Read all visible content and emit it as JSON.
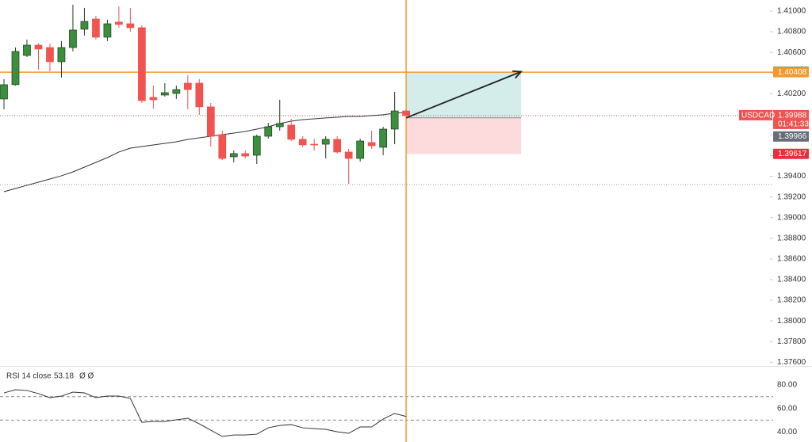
{
  "chart_data": {
    "type": "candlestick",
    "symbol": "USDCAD",
    "open": [
      1.40149,
      1.40287,
      1.4057,
      1.4067,
      1.40647,
      1.40509,
      1.40647,
      1.40824,
      1.40923,
      1.40747,
      1.40893,
      1.40877,
      1.40839,
      1.40164,
      1.40187,
      1.40202,
      1.40302,
      1.40302,
      1.40072,
      1.39803,
      1.39589,
      1.3962,
      1.39604,
      1.39788,
      1.3988,
      1.39896,
      1.39758,
      1.39711,
      1.39711,
      1.39758,
      1.39635,
      1.39573,
      1.39727,
      1.39681,
      1.39857,
      1.40033
    ],
    "high": [
      1.4034,
      1.40647,
      1.40724,
      1.40686,
      1.40686,
      1.40709,
      1.41061,
      1.41031,
      1.40954,
      1.40916,
      1.41046,
      1.41031,
      1.40862,
      1.40279,
      1.40302,
      1.40279,
      1.40379,
      1.4034,
      1.4011,
      1.39842,
      1.3965,
      1.3965,
      1.39803,
      1.39918,
      1.40141,
      1.39957,
      1.39788,
      1.39765,
      1.39788,
      1.39788,
      1.39666,
      1.39765,
      1.39842,
      1.3988,
      1.40217,
      1.40048
    ],
    "low": [
      1.40049,
      1.40279,
      1.40555,
      1.40432,
      1.40417,
      1.40356,
      1.40609,
      1.40762,
      1.40724,
      1.40709,
      1.40839,
      1.408,
      1.4011,
      1.40057,
      1.40172,
      1.40149,
      1.40049,
      1.39995,
      1.39688,
      1.39558,
      1.39535,
      1.39573,
      1.3952,
      1.39765,
      1.39842,
      1.39742,
      1.39681,
      1.3965,
      1.39573,
      1.3962,
      1.39328,
      1.39543,
      1.39666,
      1.39604,
      1.39711,
      1.3998
    ],
    "close": [
      1.40287,
      1.40609,
      1.4067,
      1.40632,
      1.40509,
      1.40647,
      1.40816,
      1.409,
      1.40747,
      1.40877,
      1.4087,
      1.40839,
      1.40133,
      1.40141,
      1.4021,
      1.4024,
      1.4024,
      1.40072,
      1.39788,
      1.39573,
      1.3962,
      1.39596,
      1.39788,
      1.3988,
      1.39911,
      1.39758,
      1.39704,
      1.39704,
      1.39758,
      1.39635,
      1.39573,
      1.39742,
      1.39696,
      1.39857,
      1.40033,
      1.39988
    ],
    "up_color": "#3b8f3e",
    "down_color": "#f05350",
    "moving_average": {
      "color": "#333333",
      "values": [
        1.39251,
        1.39282,
        1.39313,
        1.39343,
        1.39374,
        1.39405,
        1.39443,
        1.39489,
        1.39535,
        1.39581,
        1.39635,
        1.39673,
        1.39688,
        1.39704,
        1.39719,
        1.39734,
        1.39757,
        1.39773,
        1.39788,
        1.39803,
        1.39819,
        1.39834,
        1.39857,
        1.3988,
        1.39911,
        1.39934,
        1.39949,
        1.39957,
        1.39965,
        1.39972,
        1.3998,
        1.3998,
        1.39988,
        1.39996,
        1.40011,
        1.40018
      ]
    },
    "ylim": [
      1.37564,
      1.41107
    ],
    "yticks": [
      {
        "value": 1.41,
        "label": "1.41000"
      },
      {
        "value": 1.408,
        "label": "1.40800"
      },
      {
        "value": 1.406,
        "label": "1.40600"
      },
      {
        "value": 1.404,
        "label": "1.40400"
      },
      {
        "value": 1.402,
        "label": "1.40200"
      },
      {
        "value": 1.4,
        "label": "1.40000"
      },
      {
        "value": 1.398,
        "label": "1.39800"
      },
      {
        "value": 1.396,
        "label": "1.39600"
      },
      {
        "value": 1.394,
        "label": "1.39400"
      },
      {
        "value": 1.392,
        "label": "1.39200"
      },
      {
        "value": 1.39,
        "label": "1.39000"
      },
      {
        "value": 1.388,
        "label": "1.38800"
      },
      {
        "value": 1.386,
        "label": "1.38600"
      },
      {
        "value": 1.384,
        "label": "1.38400"
      },
      {
        "value": 1.382,
        "label": "1.38200"
      },
      {
        "value": 1.38,
        "label": "1.38000"
      },
      {
        "value": 1.378,
        "label": "1.37800"
      },
      {
        "value": 1.376,
        "label": "1.37600"
      }
    ],
    "last_price": 1.39988,
    "countdown": "01:41:33",
    "hline": {
      "value": 1.40408,
      "color": "#f29a2e"
    },
    "support_line": 1.3932,
    "position": {
      "entry": 1.39966,
      "target": 1.40413,
      "stop": 1.39617
    },
    "indicator": {
      "title": "RSI 14 close",
      "value": 53.18,
      "symbols": "Ø Ø",
      "color": "#333333",
      "values": [
        73.2,
        75.9,
        75.3,
        72.6,
        69.2,
        70.5,
        73.9,
        73.2,
        69.2,
        70.5,
        70.5,
        68.5,
        48.2,
        48.9,
        48.9,
        50.3,
        51.6,
        46.9,
        41.5,
        36.1,
        37.4,
        37.4,
        38.1,
        43.5,
        45.5,
        46.2,
        43.5,
        42.8,
        42.2,
        40.1,
        38.8,
        44.2,
        44.2,
        50.9,
        55.7,
        53.18
      ],
      "ylim": [
        31.4,
        95.5
      ],
      "yticks": [
        {
          "value": 80,
          "label": "80.00"
        },
        {
          "value": 60,
          "label": "60.00"
        },
        {
          "value": 40,
          "label": "40.00"
        }
      ],
      "levels": [
        70,
        50
      ]
    }
  }
}
